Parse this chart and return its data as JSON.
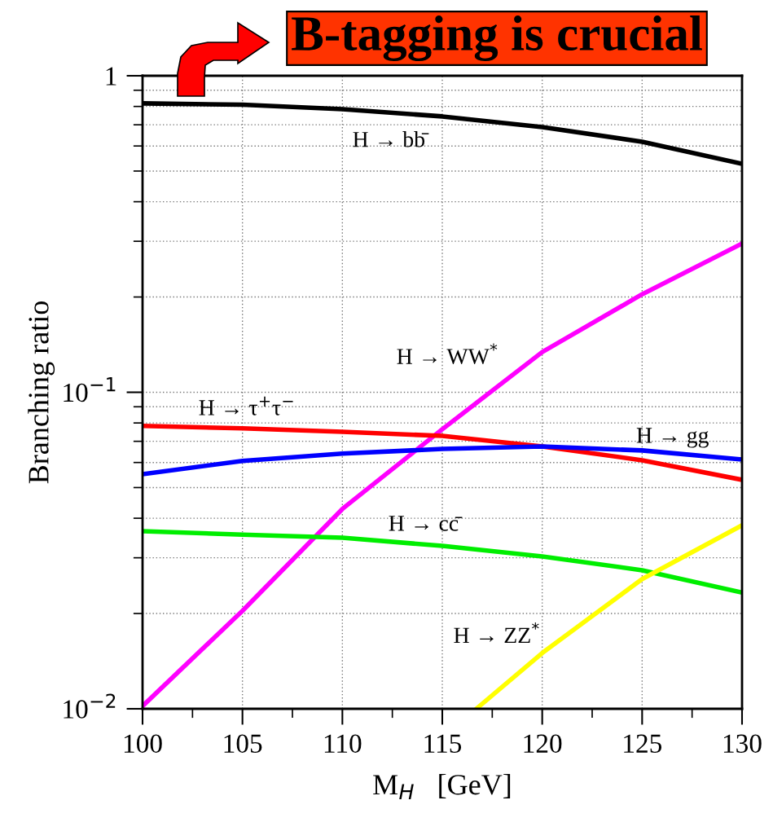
{
  "chart_data": {
    "type": "line",
    "title": "B-tagging is crucial",
    "xlabel": "M$_{H}$   [GeV]",
    "ylabel": "Branching ratio",
    "log": "y",
    "grid": true,
    "legend": false,
    "marker": "none",
    "line_style": "solid",
    "x": [
      100,
      105,
      110,
      115,
      120,
      125,
      130
    ],
    "xlim": [
      100,
      130
    ],
    "ylim": [
      0.01,
      1
    ],
    "xticks": [
      100,
      {
        "value": 102.5,
        "label": null
      },
      105,
      {
        "value": 107.5,
        "label": null
      },
      110,
      {
        "value": 112.5,
        "label": null
      },
      115,
      {
        "value": 117.5,
        "label": null
      },
      120,
      {
        "value": 122.5,
        "label": null
      },
      125,
      {
        "value": 127.5,
        "label": null
      },
      130
    ],
    "yticks": [
      {
        "value": 0.01,
        "label": "10$^{−2}$"
      },
      {
        "value": 0.02,
        "label": null
      },
      {
        "value": 0.03,
        "label": null
      },
      {
        "value": 0.04,
        "label": null
      },
      {
        "value": 0.05,
        "label": null
      },
      {
        "value": 0.06,
        "label": null
      },
      {
        "value": 0.07,
        "label": null
      },
      {
        "value": 0.08,
        "label": null
      },
      {
        "value": 0.09,
        "label": null
      },
      {
        "value": 0.1,
        "label": "10$^{−1}$"
      },
      {
        "value": 0.2,
        "label": null
      },
      {
        "value": 0.3,
        "label": null
      },
      {
        "value": 0.4,
        "label": null
      },
      {
        "value": 0.5,
        "label": null
      },
      {
        "value": 0.6,
        "label": null
      },
      {
        "value": 0.7,
        "label": null
      },
      {
        "value": 0.8,
        "label": null
      },
      {
        "value": 0.9,
        "label": null
      },
      1
    ],
    "series": [
      {
        "name": "H → bb̄",
        "color": "#000000",
        "values": [
          0.818,
          0.81,
          0.784,
          0.744,
          0.688,
          0.619,
          0.527
        ]
      },
      {
        "name": "H → WW$^{*}$",
        "color": "#ff00ff",
        "values": [
          0.0102,
          0.0204,
          0.0428,
          0.0764,
          0.134,
          0.204,
          0.295
        ]
      },
      {
        "name": "H → τ$^{+}$τ$^{−}$",
        "color": "#ff0000",
        "values": [
          0.0783,
          0.0769,
          0.075,
          0.0728,
          0.0674,
          0.061,
          0.0529
        ]
      },
      {
        "name": "H → gg",
        "color": "#0000ff",
        "values": [
          0.0551,
          0.0607,
          0.064,
          0.0662,
          0.0674,
          0.0655,
          0.0613
        ]
      },
      {
        "name": "H → cc̄",
        "color": "#00ee00",
        "values": [
          0.0364,
          0.0355,
          0.0347,
          0.0327,
          0.0303,
          0.0274,
          0.0233
        ]
      },
      {
        "name": "H → ZZ$^{*}$",
        "color": "#ffff00",
        "x": [
          116.7,
          120,
          125,
          130
        ],
        "values": [
          0.01,
          0.015,
          0.0257,
          0.038
        ]
      }
    ]
  }
}
